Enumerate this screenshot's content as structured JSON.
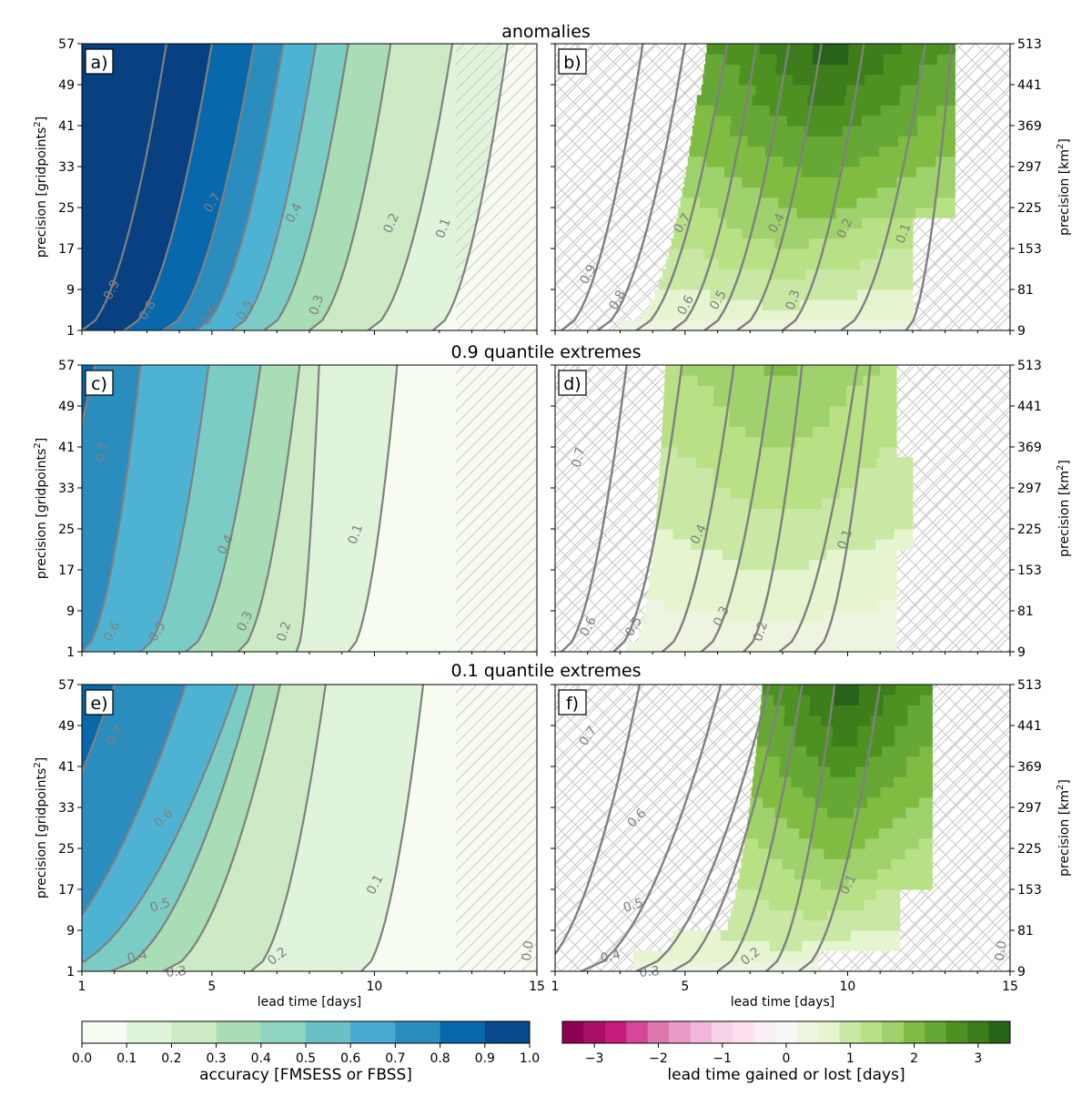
{
  "row_titles": [
    "anomalies",
    "0.9 quantile extremes",
    "0.1 quantile extremes"
  ],
  "axes": {
    "xlabel": "lead time [days]",
    "ylabel_left": "precision [gridpoints$^2$]",
    "ylabel_left_main": "precision [gridpoints",
    "ylabel_left_sup": "2",
    "ylabel_left_end": "]",
    "ylabel_right_main": "precision [km",
    "ylabel_right_sup": "2",
    "ylabel_right_end": "]",
    "xticks": [
      "1",
      "5",
      "10",
      "15"
    ],
    "yticks_left": [
      "1",
      "9",
      "17",
      "25",
      "33",
      "41",
      "49",
      "57"
    ],
    "yticks_right": [
      "9",
      "81",
      "153",
      "225",
      "297",
      "369",
      "441",
      "513"
    ]
  },
  "colorbars": {
    "accuracy": {
      "label": "accuracy [FMSESS or FBSS]",
      "ticks": [
        "0.0",
        "0.1",
        "0.2",
        "0.3",
        "0.4",
        "0.5",
        "0.6",
        "0.7",
        "0.8",
        "0.9",
        "1.0"
      ],
      "colors": [
        "#f7fcf0",
        "#e0f3db",
        "#ccebc5",
        "#a8ddb5",
        "#7bccc4",
        "#4eb3d3",
        "#2b8cbe",
        "#0868ac",
        "#084081"
      ]
    },
    "lead_time": {
      "label": "lead time gained or lost [days]",
      "ticks": [
        "−3",
        "−2",
        "−1",
        "0",
        "1",
        "2",
        "3"
      ],
      "colors": [
        "#8e0152",
        "#a90f67",
        "#c51b7d",
        "#d6479a",
        "#de77ae",
        "#ea9cc7",
        "#f1b6da",
        "#f8d3e8",
        "#fde0ef",
        "#faeef4",
        "#f7f7f7",
        "#edf5e0",
        "#e6f5d0",
        "#c9e8a4",
        "#b8e186",
        "#9fd16c",
        "#7fbc41",
        "#66a836",
        "#4d9221",
        "#3d7d1c",
        "#276419"
      ]
    }
  },
  "chart_data": [
    {
      "panel": "a)",
      "type": "heatmap",
      "title": "anomalies",
      "xlabel": "lead time [days]",
      "ylabel": "precision [gridpoints^2]",
      "xlim": [
        1,
        15
      ],
      "ylim": [
        1,
        57
      ],
      "contour_labels": [
        "0.9",
        "0.8",
        "0.7",
        "0.6",
        "0.5",
        "0.4",
        "0.3",
        "0.2",
        "0.1"
      ],
      "contours_at_precision_1": {
        "0.9": 1.0,
        "0.8": 2.3,
        "0.7": 3.5,
        "0.6": 4.5,
        "0.5": 5.6,
        "0.4": 6.6,
        "0.3": 8.0,
        "0.2": 9.8,
        "0.1": 11.8
      },
      "contours_at_precision_57": {
        "0.9": 3.6,
        "0.8": 5.0,
        "0.7": 6.3,
        "0.6": 7.2,
        "0.5": 8.2,
        "0.4": 9.2,
        "0.3": 10.5,
        "0.2": 12.4,
        "0.1": 14.1
      }
    },
    {
      "panel": "b)",
      "type": "heatmap",
      "title": "anomalies",
      "xlabel": "lead time [days]",
      "ylabel": "precision [km^2]",
      "xlim": [
        1,
        15
      ],
      "ylim": [
        9,
        513
      ],
      "colorbar": "lead time gained or lost [days]",
      "contour_labels": [
        "0.9",
        "0.8",
        "0.7",
        "0.6",
        "0.5",
        "0.4",
        "0.3",
        "0.2",
        "0.1"
      ],
      "max_lead_time_gained_days": 3.5
    },
    {
      "panel": "c)",
      "type": "heatmap",
      "title": "0.9 quantile extremes",
      "xlabel": "lead time [days]",
      "ylabel": "precision [gridpoints^2]",
      "xlim": [
        1,
        15
      ],
      "ylim": [
        1,
        57
      ],
      "contour_labels": [
        "0.7",
        "0.6",
        "0.5",
        "0.4",
        "0.3",
        "0.2",
        "0.1"
      ],
      "contours_at_precision_1": {
        "0.6": 1.0,
        "0.5": 2.8,
        "0.4": 4.2,
        "0.3": 5.8,
        "0.2": 7.6,
        "0.1": 9.2
      },
      "contours_at_precision_57": {
        "0.7": 1.4,
        "0.6": 2.8,
        "0.5": 4.9,
        "0.4": 6.5,
        "0.3": 7.7,
        "0.2": 8.3,
        "0.1": 10.7
      }
    },
    {
      "panel": "d)",
      "type": "heatmap",
      "title": "0.9 quantile extremes",
      "xlabel": "lead time [days]",
      "ylabel": "precision [km^2]",
      "xlim": [
        1,
        15
      ],
      "ylim": [
        9,
        513
      ],
      "colorbar": "lead time gained or lost [days]",
      "contour_labels": [
        "0.7",
        "0.6",
        "0.5",
        "0.4",
        "0.3",
        "0.2",
        "0.1"
      ],
      "max_lead_time_gained_days": 2.0
    },
    {
      "panel": "e)",
      "type": "heatmap",
      "title": "0.1 quantile extremes",
      "xlabel": "lead time [days]",
      "ylabel": "precision [gridpoints^2]",
      "xlim": [
        1,
        15
      ],
      "ylim": [
        1,
        57
      ],
      "contour_labels": [
        "0.7",
        "0.6",
        "0.5",
        "0.4",
        "0.3",
        "0.2",
        "0.1",
        "0.0"
      ],
      "contours_at_precision_1": {
        "0.4": 1.9,
        "0.3": 3.5,
        "0.2": 6.2,
        "0.1": 9.6,
        "0.0": 14.9
      },
      "contours_at_precision_57": {
        "0.7": 2.0,
        "0.6": 4.2,
        "0.5": 5.8,
        "0.4": 6.3,
        "0.3": 7.1,
        "0.2": 8.5,
        "0.1": 11.5
      }
    },
    {
      "panel": "f)",
      "type": "heatmap",
      "title": "0.1 quantile extremes",
      "xlabel": "lead time [days]",
      "ylabel": "precision [km^2]",
      "xlim": [
        1,
        15
      ],
      "ylim": [
        9,
        513
      ],
      "colorbar": "lead time gained or lost [days]",
      "contour_labels": [
        "0.7",
        "0.6",
        "0.5",
        "0.4",
        "0.3",
        "0.2",
        "0.0"
      ],
      "max_lead_time_gained_days": 3.5
    }
  ]
}
